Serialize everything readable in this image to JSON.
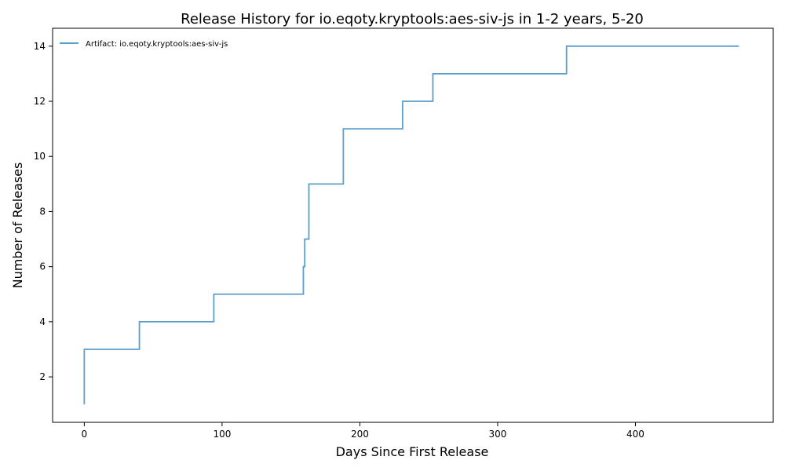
{
  "chart_data": {
    "type": "line",
    "step": "post",
    "title": "Release History for io.eqoty.kryptools:aes-siv-js in 1-2 years, 5-20",
    "xlabel": "Days Since First Release",
    "ylabel": "Number of Releases",
    "xlim": [
      -23,
      500
    ],
    "ylim": [
      0.35,
      14.65
    ],
    "xticks": [
      0,
      100,
      200,
      300,
      400
    ],
    "yticks": [
      2,
      4,
      6,
      8,
      10,
      12,
      14
    ],
    "grid": false,
    "legend_position": "top-left",
    "series": [
      {
        "name": "Artifact: io.eqoty.kryptools:aes-siv-js",
        "color": "#5b9fcb",
        "x": [
          0,
          0,
          40,
          94,
          159,
          160,
          163,
          188,
          231,
          253,
          350,
          475
        ],
        "y": [
          1,
          3,
          4,
          5,
          6,
          7,
          9,
          11,
          12,
          13,
          14,
          14
        ]
      }
    ]
  }
}
